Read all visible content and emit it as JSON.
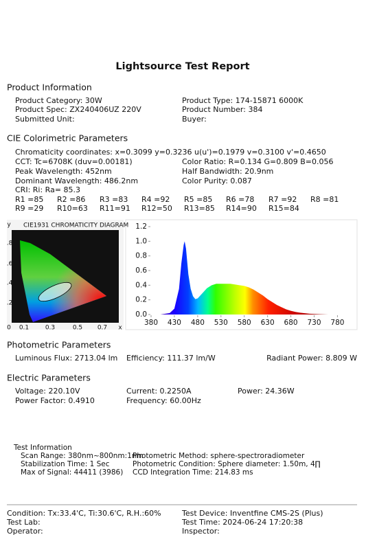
{
  "header": {
    "title": "Lightsource Test Report"
  },
  "product_information": {
    "heading": "Product Information",
    "fields": [
      "Product Category: 30W",
      "Product Type: 174-15871 6000K",
      "Product Spec: ZX240406UZ 220V",
      "Product Number: 384",
      "Submitted Unit:",
      "Buyer:"
    ]
  },
  "cie": {
    "heading": "CIE Colorimetric Parameters",
    "chromaticity": "Chromaticity coordinates: x=0.3099 y=0.3236",
    "uv": "u(u')=0.1979 v=0.3100 v'=0.4650",
    "fields": [
      "CCT: Tc=6708K (duv=0.00181)",
      "Color Ratio: R=0.134  G=0.809  B=0.056",
      "Peak Wavelength: 452nm",
      "Half Bandwidth: 20.9nm",
      "Dominant Wavelength: 486.2nm",
      "Color Purity: 0.087"
    ],
    "cri": "CRI: Ri: Ra= 85.3",
    "r_values": [
      "R1 =85",
      "R2 =86",
      "R3 =83",
      "R4 =92",
      "R5 =85",
      "R6 =78",
      "R7 =92",
      "R8 =81",
      "R9 =29",
      "R10=63",
      "R11=91",
      "R12=50",
      "R13=85",
      "R14=90",
      "R15=84"
    ]
  },
  "cie_diagram": {
    "title": "CIE1931 CHROMATICITY DIAGRAM",
    "y_label": "y",
    "x_label": "x",
    "y_ticks": [
      ".8",
      ".6",
      ".4",
      ".2"
    ],
    "x_ticks": [
      "0",
      "0.1",
      "0.3",
      "0.5",
      "0.7"
    ]
  },
  "chart_data": {
    "type": "area",
    "x": [
      380,
      400,
      420,
      430,
      440,
      445,
      450,
      452,
      455,
      460,
      465,
      470,
      475,
      480,
      490,
      500,
      510,
      520,
      530,
      540,
      550,
      560,
      570,
      580,
      590,
      600,
      610,
      620,
      630,
      640,
      650,
      660,
      670,
      680,
      690,
      700,
      720,
      740,
      760,
      780,
      800
    ],
    "values": [
      0,
      0,
      0.02,
      0.08,
      0.35,
      0.7,
      0.95,
      1.0,
      0.9,
      0.55,
      0.35,
      0.25,
      0.21,
      0.22,
      0.29,
      0.36,
      0.4,
      0.42,
      0.42,
      0.42,
      0.42,
      0.41,
      0.4,
      0.39,
      0.37,
      0.34,
      0.3,
      0.26,
      0.21,
      0.17,
      0.13,
      0.1,
      0.07,
      0.05,
      0.035,
      0.025,
      0.01,
      0.005,
      0,
      0,
      0
    ],
    "xlim": [
      380,
      800
    ],
    "xticks": [
      380,
      430,
      480,
      530,
      580,
      630,
      680,
      730,
      780
    ],
    "ylim": [
      0,
      1.2
    ],
    "yticks": [
      {
        "value": 0,
        "label": "0.0"
      },
      0.2,
      0.4,
      0.6,
      0.8,
      {
        "value": 1,
        "label": "1.0"
      },
      1.2
    ]
  },
  "photometric": {
    "heading": "Photometric Parameters",
    "fields": [
      "Luminous Flux: 2713.04 lm",
      "Efficiency: 111.37 lm/W",
      "Radiant Power: 8.809 W"
    ]
  },
  "electric": {
    "heading": "Electric Parameters",
    "fields": [
      "Voltage: 220.10V",
      "Current: 0.2250A",
      "Power: 24.36W",
      "Power Factor: 0.4910",
      "Frequency: 60.00Hz"
    ]
  },
  "test_information": {
    "heading": "Test Information",
    "fields": [
      "Scan Range: 380nm~800nm:1nm",
      "Photometric Method: sphere-spectroradiometer",
      "Stabilization Time: 1 Sec",
      "Photometric Condition: Sphere diameter: 1.50m, 4∏",
      "Max of Signal: 44411 (3986)",
      "CCD Integration Time: 214.83 ms"
    ]
  },
  "footer": {
    "fields": [
      "Condition: Tx:33.4'C, Ti:30.6'C, R.H.:60%",
      "Test Device: Inventfine CMS-2S (Plus)",
      "Test Lab:",
      "Test Time: 2024-06-24 17:20:38",
      "Operator:",
      "Inspector:"
    ]
  }
}
